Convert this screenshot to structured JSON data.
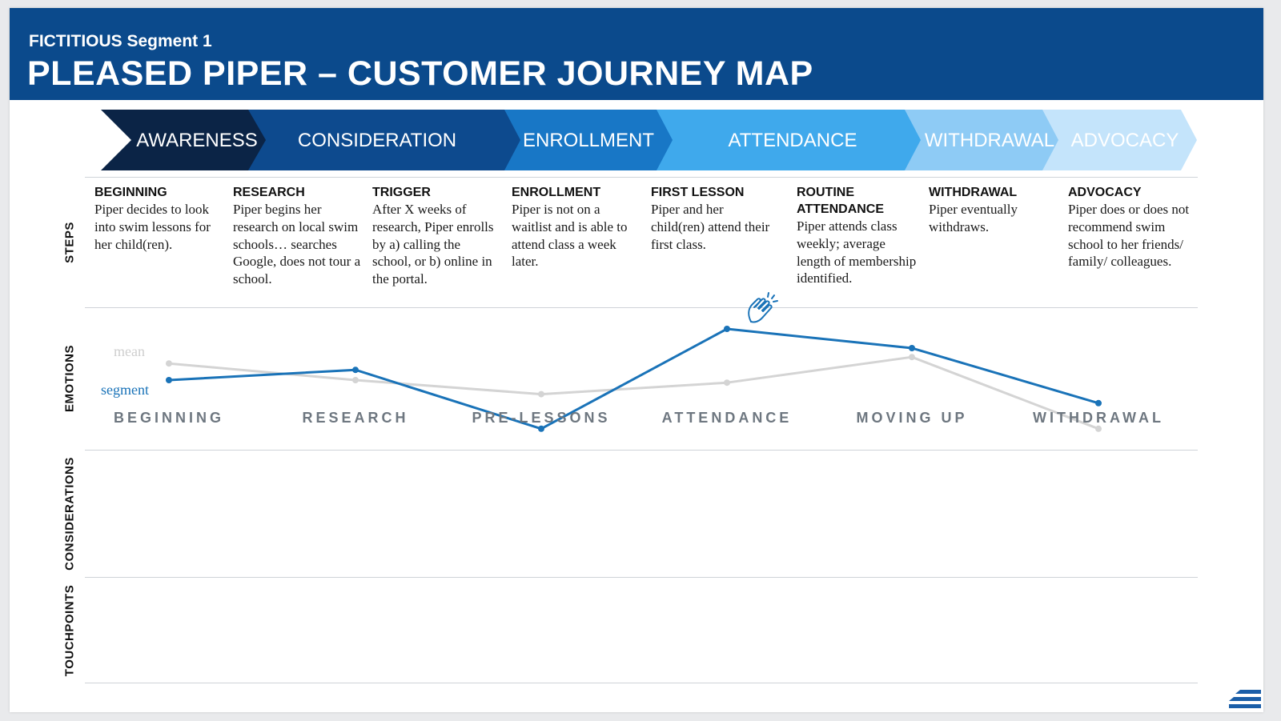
{
  "header": {
    "supertitle": "FICTITIOUS Segment 1",
    "title": "PLEASED PIPER – CUSTOMER JOURNEY MAP"
  },
  "stages": [
    {
      "label": "AWARENESS",
      "color": "#0b2446"
    },
    {
      "label": "CONSIDERATION",
      "color": "#0d4a8e"
    },
    {
      "label": "ENROLLMENT",
      "color": "#1877c6"
    },
    {
      "label": "ATTENDANCE",
      "color": "#3fa9ec"
    },
    {
      "label": "WITHDRAWAL",
      "color": "#8ecbf5"
    },
    {
      "label": "ADVOCACY",
      "color": "#c4e4fb"
    }
  ],
  "row_labels": {
    "steps": "STEPS",
    "emotions": "EMOTIONS",
    "considerations": "CONSIDERATIONS",
    "touchpoints": "TOUCHPOINTS"
  },
  "steps": [
    {
      "heading": "BEGINNING",
      "text": "Piper decides to look into swim lessons for her child(ren)."
    },
    {
      "heading": "RESEARCH",
      "text": "Piper begins her research on local swim schools… searches Google, does not tour a school."
    },
    {
      "heading": "TRIGGER",
      "text": "After X weeks of research, Piper enrolls by a) calling the school, or b) online in the portal."
    },
    {
      "heading": "ENROLLMENT",
      "text": "Piper is not on a waitlist and is able to attend class a week later."
    },
    {
      "heading": "FIRST LESSON",
      "text": "Piper and her child(ren) attend their first class."
    },
    {
      "heading": "ROUTINE ATTENDANCE",
      "text": "Piper attends class weekly; average length of membership identified."
    },
    {
      "heading": "WITHDRAWAL",
      "text": "Piper eventually withdraws."
    },
    {
      "heading": "ADVOCACY",
      "text": "Piper does or does not recommend swim school to her friends/ family/ colleagues."
    }
  ],
  "chart_data": {
    "type": "line",
    "title": "",
    "categories": [
      "BEGINNING",
      "RESEARCH",
      "PRE-LESSONS",
      "ATTENDANCE",
      "MOVING UP",
      "WITHDRAWAL"
    ],
    "ylim": [
      0,
      10
    ],
    "series": [
      {
        "name": "mean",
        "color": "#d4d4d4",
        "values": [
          6.3,
          5.0,
          3.9,
          4.8,
          6.8,
          1.2
        ]
      },
      {
        "name": "segment",
        "color": "#1a73b8",
        "values": [
          5.0,
          5.8,
          1.2,
          9.0,
          7.5,
          3.2
        ]
      }
    ],
    "category_label_color": "#6e7780",
    "annotation": "clapping-hands-icon at ATTENDANCE peak"
  }
}
